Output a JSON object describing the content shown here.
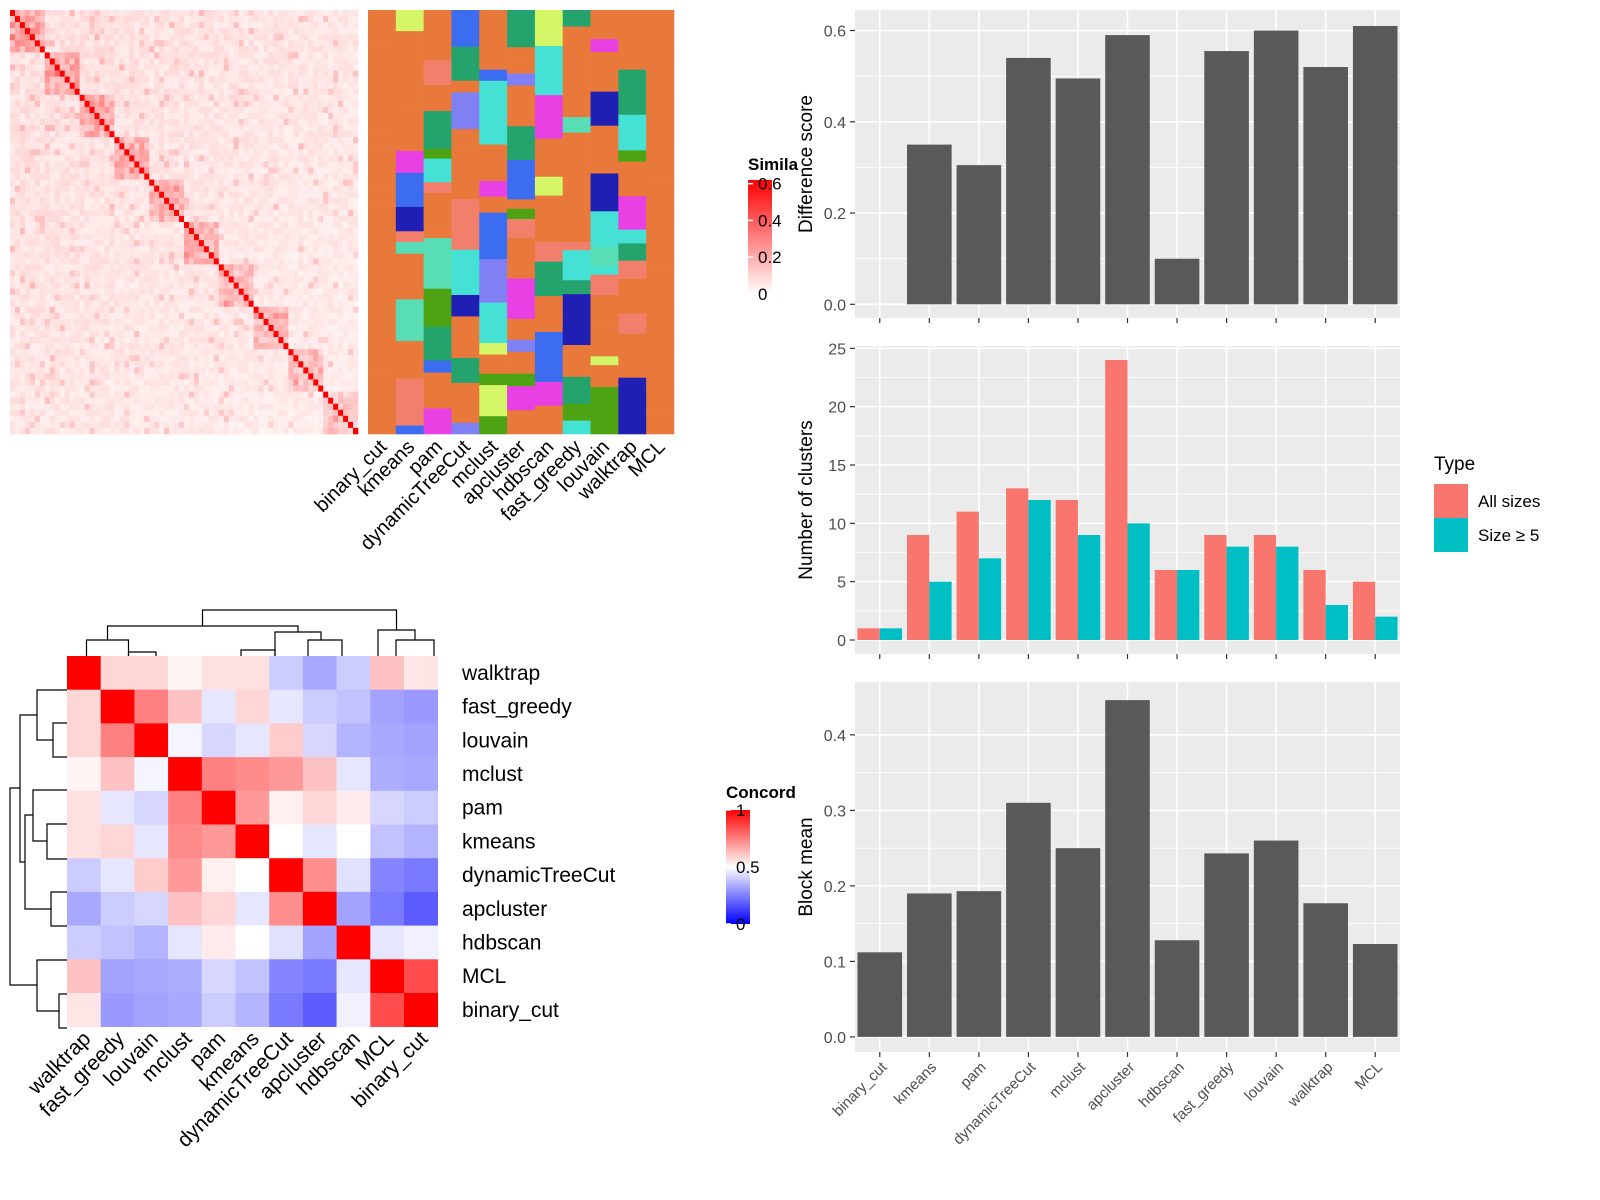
{
  "similarity_heatmap": {
    "legend_title": "Simila",
    "legend_ticks": [
      {
        "v": 0,
        "label": "0"
      },
      {
        "v": 0.2,
        "label": "0.2"
      },
      {
        "v": 0.4,
        "label": "0.4"
      },
      {
        "v": 0.6,
        "label": "0.6"
      }
    ],
    "low_color": "#FFFFFF",
    "high_color": "#FF0000",
    "n_items": 70,
    "columns": [
      "binary_cut",
      "kmeans",
      "pam",
      "dynamicTreeCut",
      "mclust",
      "apcluster",
      "hdbscan",
      "fast_greedy",
      "louvain",
      "walktrap",
      "MCL"
    ],
    "assignment_palette": [
      "#E8793A",
      "#1F1FB4",
      "#4DA312",
      "#8080F5",
      "#44E1D4",
      "#D5F666",
      "#E940E4",
      "#58DDB4",
      "#3C6CF0",
      "#F27F6C",
      "#25A36C"
    ]
  },
  "concordance_heatmap": {
    "legend_title": "Concord",
    "legend_ticks": [
      {
        "v": 0,
        "label": "0"
      },
      {
        "v": 0.5,
        "label": "0.5"
      },
      {
        "v": 1,
        "label": "1"
      }
    ],
    "low_color": "#0000FF",
    "mid_color": "#FFFFFF",
    "high_color": "#FF0000",
    "order": [
      "walktrap",
      "fast_greedy",
      "louvain",
      "mclust",
      "pam",
      "kmeans",
      "dynamicTreeCut",
      "apcluster",
      "hdbscan",
      "MCL",
      "binary_cut"
    ],
    "matrix": [
      [
        1.0,
        0.58,
        0.58,
        0.52,
        0.56,
        0.56,
        0.4,
        0.33,
        0.4,
        0.62,
        0.55
      ],
      [
        0.58,
        1.0,
        0.75,
        0.62,
        0.45,
        0.58,
        0.45,
        0.4,
        0.38,
        0.32,
        0.3
      ],
      [
        0.58,
        0.75,
        1.0,
        0.48,
        0.42,
        0.45,
        0.6,
        0.42,
        0.35,
        0.33,
        0.32
      ],
      [
        0.52,
        0.62,
        0.48,
        1.0,
        0.75,
        0.73,
        0.7,
        0.62,
        0.45,
        0.34,
        0.33
      ],
      [
        0.56,
        0.45,
        0.42,
        0.75,
        1.0,
        0.7,
        0.53,
        0.58,
        0.54,
        0.42,
        0.4
      ],
      [
        0.56,
        0.58,
        0.45,
        0.73,
        0.7,
        1.0,
        0.5,
        0.45,
        0.5,
        0.38,
        0.35
      ],
      [
        0.4,
        0.45,
        0.6,
        0.7,
        0.53,
        0.5,
        1.0,
        0.72,
        0.44,
        0.26,
        0.24
      ],
      [
        0.33,
        0.4,
        0.42,
        0.62,
        0.58,
        0.45,
        0.72,
        1.0,
        0.32,
        0.24,
        0.18
      ],
      [
        0.4,
        0.38,
        0.35,
        0.45,
        0.54,
        0.5,
        0.44,
        0.32,
        1.0,
        0.45,
        0.47
      ],
      [
        0.62,
        0.32,
        0.33,
        0.34,
        0.42,
        0.38,
        0.26,
        0.24,
        0.45,
        1.0,
        0.85
      ],
      [
        0.55,
        0.3,
        0.32,
        0.33,
        0.4,
        0.35,
        0.24,
        0.18,
        0.47,
        0.85,
        1.0
      ]
    ]
  },
  "chart_data": [
    {
      "type": "bar",
      "title": "",
      "xlabel": "",
      "ylabel": "Difference score",
      "categories": [
        "binary_cut",
        "kmeans",
        "pam",
        "dynamicTreeCut",
        "mclust",
        "apcluster",
        "hdbscan",
        "fast_greedy",
        "louvain",
        "walktrap",
        "MCL"
      ],
      "values": [
        0.0,
        0.35,
        0.305,
        0.54,
        0.495,
        0.59,
        0.1,
        0.555,
        0.6,
        0.52,
        0.61
      ],
      "ylim": [
        -0.03,
        0.645
      ],
      "yticks": [
        0,
        0.2,
        0.4,
        0.6
      ],
      "ytick_labels": [
        "0.0",
        "0.2",
        "0.4",
        "0.6"
      ],
      "bar_color": "#595959",
      "panel_color": "#EBEBEB",
      "grid": true
    },
    {
      "type": "bar",
      "title": "",
      "xlabel": "",
      "ylabel": "Number of clusters",
      "categories": [
        "binary_cut",
        "kmeans",
        "pam",
        "dynamicTreeCut",
        "mclust",
        "apcluster",
        "hdbscan",
        "fast_greedy",
        "louvain",
        "walktrap",
        "MCL"
      ],
      "series": [
        {
          "name": "All sizes",
          "color": "#F8766D",
          "values": [
            1,
            9,
            11,
            13,
            12,
            24,
            6,
            9,
            9,
            6,
            5
          ]
        },
        {
          "name": "Size ≥ 5",
          "color": "#00BFC4",
          "values": [
            1,
            5,
            7,
            12,
            9,
            10,
            6,
            8,
            8,
            3,
            2
          ]
        }
      ],
      "legend_title": "Type",
      "legend_position": "right",
      "ylim": [
        -1.2,
        25.2
      ],
      "yticks": [
        0,
        5,
        10,
        15,
        20,
        25
      ],
      "ytick_labels": [
        "0",
        "5",
        "10",
        "15",
        "20",
        "25"
      ],
      "panel_color": "#EBEBEB",
      "grid": true
    },
    {
      "type": "bar",
      "title": "",
      "xlabel": "",
      "ylabel": "Block mean",
      "categories": [
        "binary_cut",
        "kmeans",
        "pam",
        "dynamicTreeCut",
        "mclust",
        "apcluster",
        "hdbscan",
        "fast_greedy",
        "louvain",
        "walktrap",
        "MCL"
      ],
      "values": [
        0.112,
        0.19,
        0.193,
        0.31,
        0.25,
        0.446,
        0.128,
        0.243,
        0.26,
        0.177,
        0.123
      ],
      "ylim": [
        -0.02,
        0.47
      ],
      "yticks": [
        0,
        0.1,
        0.2,
        0.3,
        0.4
      ],
      "ytick_labels": [
        "0.0",
        "0.1",
        "0.2",
        "0.3",
        "0.4"
      ],
      "bar_color": "#595959",
      "panel_color": "#EBEBEB",
      "grid": true
    }
  ]
}
